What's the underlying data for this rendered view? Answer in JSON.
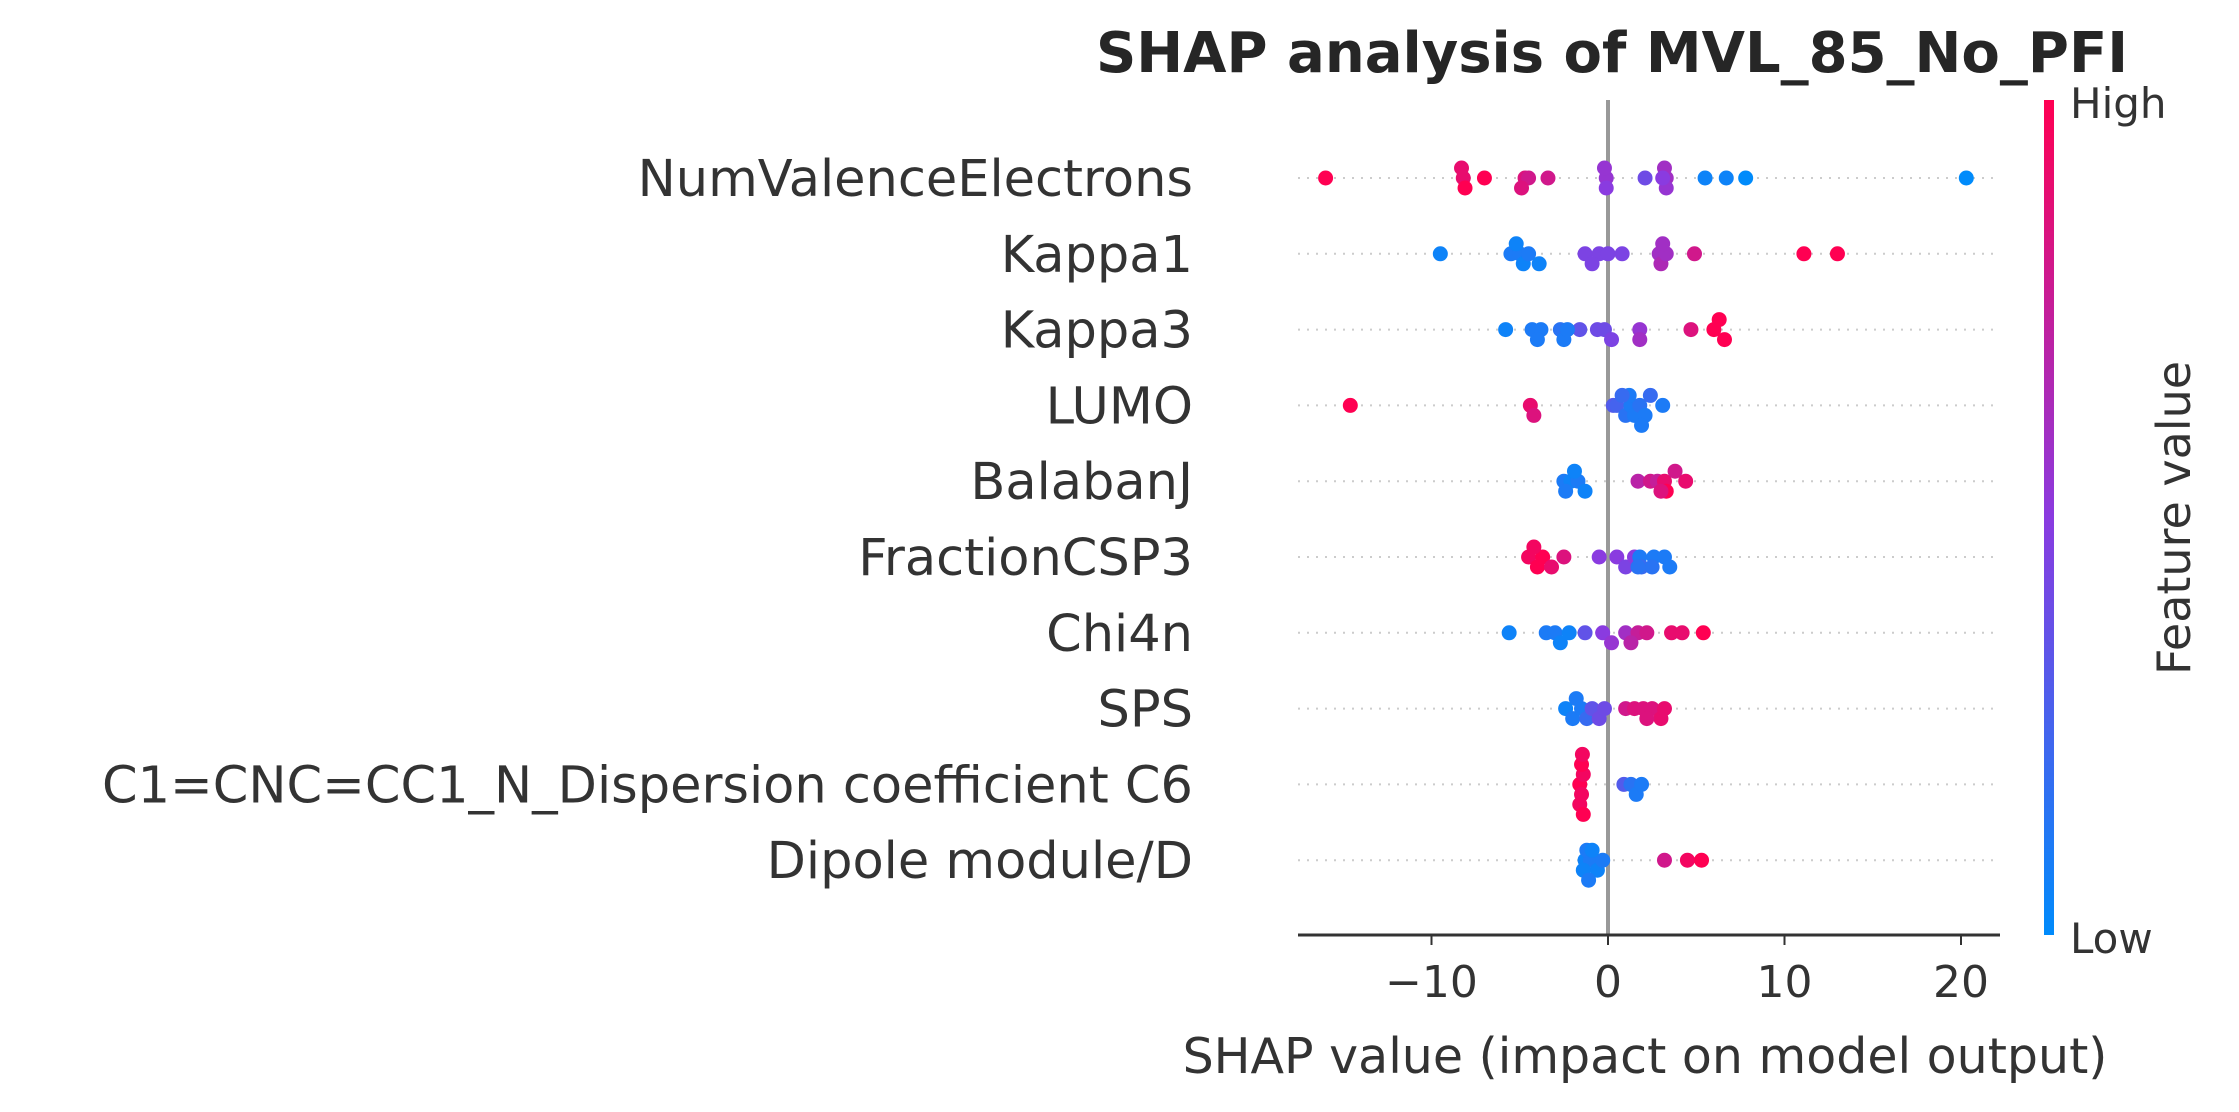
{
  "chart_data": {
    "type": "scatter",
    "subtype": "shap-beeswarm",
    "title": "SHAP analysis of MVL_85_No_PFI",
    "xlabel": "SHAP value (impact on model output)",
    "xlim": [
      -17.5,
      22.5
    ],
    "xticks": [
      -10,
      0,
      10,
      20
    ],
    "xtick_labels": [
      "−10",
      "0",
      "10",
      "20"
    ],
    "colorbar": {
      "label": "Feature value",
      "high": "High",
      "low": "Low",
      "high_color": "#ff0052",
      "low_color": "#008bfb"
    },
    "zero_line_color": "#999999",
    "features": [
      {
        "name": "NumValenceElectrons",
        "points": [
          [
            -16,
            1
          ],
          [
            -8.2,
            0.9
          ],
          [
            -8.1,
            1
          ],
          [
            -7,
            1
          ],
          [
            -4.7,
            0.85
          ],
          [
            -4.5,
            0.8
          ],
          [
            -3.4,
            0.8
          ],
          [
            -0.1,
            0.55
          ],
          [
            -0.1,
            0.5
          ],
          [
            2.1,
            0.4
          ],
          [
            3.3,
            0.6
          ],
          [
            3.3,
            0.55
          ],
          [
            3.2,
            0.6
          ],
          [
            5.5,
            0.05
          ],
          [
            6.7,
            0.05
          ],
          [
            7.8,
            0
          ],
          [
            20.3,
            0
          ],
          [
            -8.3,
            0.9
          ],
          [
            -4.9,
            0.85
          ],
          [
            -0.2,
            0.55
          ],
          [
            3.1,
            0.5
          ]
        ]
      },
      {
        "name": "Kappa1",
        "points": [
          [
            -9.5,
            0.05
          ],
          [
            -5.5,
            0.1
          ],
          [
            -5,
            0.1
          ],
          [
            -4.8,
            0.05
          ],
          [
            -4.5,
            0.1
          ],
          [
            -3.9,
            0.05
          ],
          [
            -1.3,
            0.45
          ],
          [
            -0.5,
            0.45
          ],
          [
            0,
            0.45
          ],
          [
            0.8,
            0.45
          ],
          [
            2.9,
            0.6
          ],
          [
            3,
            0.65
          ],
          [
            3.3,
            0.6
          ],
          [
            4.9,
            0.8
          ],
          [
            11.1,
            1
          ],
          [
            13,
            1
          ],
          [
            -5.2,
            0.05
          ],
          [
            -0.9,
            0.45
          ],
          [
            3.1,
            0.6
          ]
        ]
      },
      {
        "name": "Kappa3",
        "points": [
          [
            -5.8,
            0.05
          ],
          [
            -4.3,
            0.1
          ],
          [
            -3.8,
            0.1
          ],
          [
            -2.7,
            0.15
          ],
          [
            -2.5,
            0.1
          ],
          [
            -1.6,
            0.35
          ],
          [
            -0.6,
            0.4
          ],
          [
            -0.2,
            0.4
          ],
          [
            0.2,
            0.45
          ],
          [
            1.8,
            0.55
          ],
          [
            1.8,
            0.6
          ],
          [
            4.7,
            0.85
          ],
          [
            6,
            1
          ],
          [
            6.6,
            1
          ],
          [
            -4,
            0.1
          ],
          [
            -2.3,
            0.1
          ],
          [
            6.3,
            1
          ]
        ]
      },
      {
        "name": "LUMO",
        "points": [
          [
            -14.6,
            1
          ],
          [
            -4.4,
            0.9
          ],
          [
            -4.2,
            0.85
          ],
          [
            0.3,
            0.3
          ],
          [
            0.5,
            0.25
          ],
          [
            1,
            0.15
          ],
          [
            1.3,
            0.1
          ],
          [
            1.5,
            0.1
          ],
          [
            1.8,
            0.15
          ],
          [
            2.1,
            0.1
          ],
          [
            2.4,
            0.2
          ],
          [
            3.1,
            0.1
          ],
          [
            1.2,
            0.1
          ],
          [
            1.9,
            0.1
          ],
          [
            0.8,
            0.2
          ]
        ]
      },
      {
        "name": "BalabanJ",
        "points": [
          [
            -2.5,
            0.1
          ],
          [
            -2.1,
            0.05
          ],
          [
            -1.7,
            0.1
          ],
          [
            -1.3,
            0.05
          ],
          [
            -2.4,
            0.1
          ],
          [
            1.7,
            0.7
          ],
          [
            2.4,
            0.8
          ],
          [
            2.8,
            0.75
          ],
          [
            3.2,
            0.9
          ],
          [
            3.3,
            1
          ],
          [
            3.8,
            0.8
          ],
          [
            4.4,
            0.9
          ],
          [
            -1.9,
            0.05
          ],
          [
            3,
            0.85
          ]
        ]
      },
      {
        "name": "FractionCSP3",
        "points": [
          [
            -4.5,
            0.95
          ],
          [
            -4,
            1
          ],
          [
            -3.7,
            1
          ],
          [
            -3.2,
            0.9
          ],
          [
            -2.5,
            0.85
          ],
          [
            -0.5,
            0.5
          ],
          [
            0.5,
            0.5
          ],
          [
            1,
            0.45
          ],
          [
            1.5,
            0.5
          ],
          [
            1.8,
            0.1
          ],
          [
            1.9,
            0.2
          ],
          [
            2.6,
            0.1
          ],
          [
            3.2,
            0.1
          ],
          [
            3.5,
            0.1
          ],
          [
            2.5,
            0.15
          ],
          [
            -4.2,
            0.95
          ],
          [
            1.7,
            0.15
          ]
        ]
      },
      {
        "name": "Chi4n",
        "points": [
          [
            -5.6,
            0.05
          ],
          [
            -3.5,
            0.1
          ],
          [
            -3,
            0.1
          ],
          [
            -2.2,
            0.05
          ],
          [
            -1.3,
            0.35
          ],
          [
            -0.3,
            0.5
          ],
          [
            0.2,
            0.55
          ],
          [
            1,
            0.6
          ],
          [
            1.7,
            0.75
          ],
          [
            2.2,
            0.8
          ],
          [
            3.6,
            0.9
          ],
          [
            4.2,
            0.9
          ],
          [
            5.4,
            1
          ],
          [
            -2.7,
            0.05
          ],
          [
            1.3,
            0.7
          ]
        ]
      },
      {
        "name": "SPS",
        "points": [
          [
            -2.4,
            0.05
          ],
          [
            -2,
            0.1
          ],
          [
            -1.5,
            0.1
          ],
          [
            -1.2,
            0.2
          ],
          [
            -0.9,
            0.35
          ],
          [
            -0.5,
            0.4
          ],
          [
            -0.2,
            0.4
          ],
          [
            1,
            0.8
          ],
          [
            1.5,
            0.85
          ],
          [
            2,
            0.85
          ],
          [
            2.5,
            0.85
          ],
          [
            3,
            0.9
          ],
          [
            3.2,
            0.9
          ],
          [
            -1.8,
            0.1
          ],
          [
            2.2,
            0.85
          ]
        ]
      },
      {
        "name": "C1=CNC=CC1_N_Dispersion coefficient C6",
        "points": [
          [
            -1.6,
            1
          ],
          [
            -1.5,
            0.95
          ],
          [
            -1.4,
            0.95
          ],
          [
            -1.6,
            0.95
          ],
          [
            -1.5,
            1
          ],
          [
            -1.4,
            1
          ],
          [
            0.9,
            0.3
          ],
          [
            1.3,
            0.15
          ],
          [
            1.6,
            0.1
          ],
          [
            1.9,
            0.1
          ],
          [
            -1.45,
            0.95
          ]
        ]
      },
      {
        "name": "Dipole module/D",
        "points": [
          [
            -1.3,
            0.05
          ],
          [
            -1,
            0.1
          ],
          [
            -0.6,
            0.05
          ],
          [
            -0.3,
            0.1
          ],
          [
            -1.4,
            0.05
          ],
          [
            -1.2,
            0.1
          ],
          [
            -0.9,
            0.05
          ],
          [
            3.2,
            0.8
          ],
          [
            4.5,
            0.95
          ],
          [
            5.3,
            1
          ],
          [
            -1.1,
            0.1
          ]
        ]
      }
    ]
  }
}
